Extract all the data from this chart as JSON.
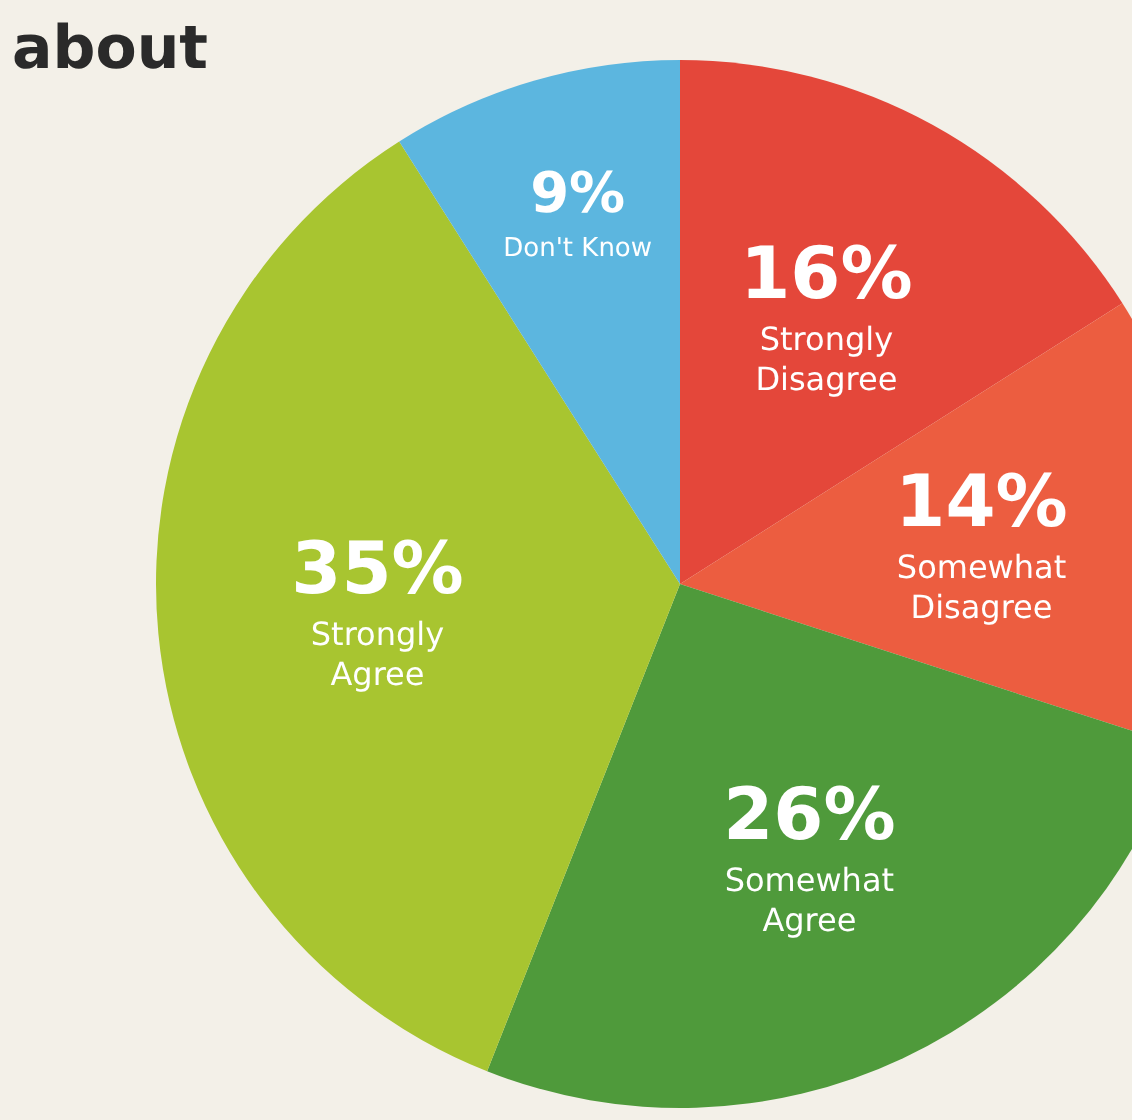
{
  "chart_data": {
    "type": "pie",
    "title": "about",
    "categories": [
      "Strongly Disagree",
      "Somewhat Disagree",
      "Somewhat Agree",
      "Strongly Agree",
      "Don't Know"
    ],
    "values": [
      16,
      14,
      26,
      35,
      9
    ],
    "colors": [
      "#e4473a",
      "#ec5d40",
      "#4f9a3b",
      "#a8c530",
      "#5cb6df"
    ],
    "value_labels": [
      "16%",
      "14%",
      "26%",
      "35%",
      "9%"
    ]
  }
}
